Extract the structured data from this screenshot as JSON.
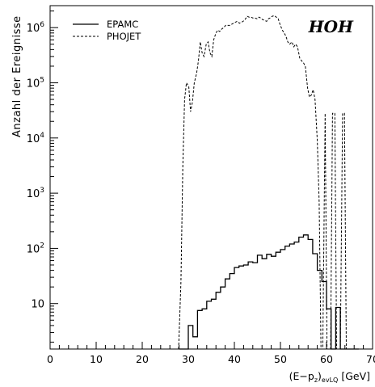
{
  "chart_data": {
    "type": "line",
    "title": "HOH",
    "ylabel": "Anzahl der Ereignisse",
    "xlabel": {
      "text": "(E−p",
      "sub_z": "z",
      "close": ")",
      "sub_evlq": "evLQ",
      "unit": " [GeV]"
    },
    "xlim": [
      0,
      70
    ],
    "ylim": [
      1.5,
      2500000
    ],
    "yscale": "log",
    "x_ticks": [
      {
        "value": 0,
        "label": "0"
      },
      {
        "value": 10,
        "label": "10"
      },
      {
        "value": 20,
        "label": "20"
      },
      {
        "value": 30,
        "label": "30"
      },
      {
        "value": 40,
        "label": "40"
      },
      {
        "value": 50,
        "label": "50"
      },
      {
        "value": 60,
        "label": "60"
      },
      {
        "value": 70,
        "label": "70"
      }
    ],
    "y_ticks": [
      {
        "value": 10,
        "base": "10",
        "exp": ""
      },
      {
        "value": 100,
        "base": "10",
        "exp": "2"
      },
      {
        "value": 1000,
        "base": "10",
        "exp": "3"
      },
      {
        "value": 10000,
        "base": "10",
        "exp": "4"
      },
      {
        "value": 100000,
        "base": "10",
        "exp": "5"
      },
      {
        "value": 1000000,
        "base": "10",
        "exp": "6"
      }
    ],
    "series": [
      {
        "name": "EPAMC",
        "style": "solid",
        "x": [
          28,
          29,
          30,
          31,
          32,
          33,
          34,
          35,
          36,
          37,
          38,
          39,
          40,
          41,
          42,
          43,
          44,
          45,
          46,
          47,
          48,
          49,
          50,
          51,
          52,
          53,
          54,
          55,
          56,
          57,
          58,
          59,
          60,
          61,
          62,
          63,
          64,
          65,
          66
        ],
        "y": [
          1.5,
          1.5,
          4,
          2.5,
          7.5,
          8,
          11,
          12,
          16,
          20,
          28,
          35,
          45,
          48,
          50,
          57,
          55,
          75,
          65,
          78,
          72,
          85,
          95,
          110,
          120,
          130,
          160,
          175,
          145,
          80,
          40,
          25,
          8,
          1.5,
          8.5,
          1.5,
          1.5,
          1.5,
          1.5
        ]
      },
      {
        "name": "PHOJET",
        "style": "dashed",
        "x": [
          27.9,
          28.4,
          28.8,
          29.2,
          29.6,
          30.1,
          30.5,
          30.9,
          31.3,
          31.8,
          32.2,
          32.6,
          33.0,
          33.4,
          33.9,
          34.3,
          34.7,
          35.1,
          35.5,
          36.0,
          36.4,
          36.8,
          37.3,
          37.7,
          38.1,
          38.5,
          39.0,
          39.4,
          39.8,
          40.2,
          40.6,
          41.1,
          41.5,
          41.9,
          42.3,
          42.8,
          43.2,
          43.6,
          44.0,
          44.4,
          44.9,
          45.3,
          45.7,
          46.1,
          46.6,
          47.0,
          47.4,
          47.8,
          48.2,
          48.7,
          49.1,
          49.5,
          49.9,
          50.4,
          50.8,
          51.2,
          51.6,
          52.0,
          52.5,
          52.9,
          53.3,
          53.7,
          54.2,
          54.6,
          55.0,
          55.4,
          55.9,
          56.3,
          56.7,
          57.1,
          57.5,
          58.0,
          58.4,
          58.8,
          59.2,
          59.7,
          60.1,
          60.5,
          60.9,
          61.3,
          61.8,
          62.2,
          62.6,
          63.0,
          63.5,
          63.9,
          64.3,
          64.7,
          65.1,
          65.6
        ],
        "y": [
          1.5,
          25,
          3000,
          50000,
          100000,
          85000,
          30000,
          45000,
          100000,
          150000,
          250000,
          550000,
          350000,
          300000,
          500000,
          550000,
          350000,
          300000,
          600000,
          800000,
          900000,
          850000,
          950000,
          1000000,
          1100000,
          1100000,
          1100000,
          1150000,
          1200000,
          1250000,
          1300000,
          1200000,
          1250000,
          1300000,
          1400000,
          1600000,
          1550000,
          1550000,
          1500000,
          1500000,
          1450000,
          1550000,
          1500000,
          1400000,
          1350000,
          1300000,
          1450000,
          1500000,
          1600000,
          1650000,
          1550000,
          1450000,
          1150000,
          900000,
          800000,
          700000,
          550000,
          500000,
          550000,
          450000,
          500000,
          450000,
          280000,
          250000,
          230000,
          200000,
          80000,
          55000,
          60000,
          75000,
          50000,
          9000,
          700,
          1.5,
          1.5,
          28000,
          1.5,
          1.5,
          1.5,
          28000,
          28000,
          1.5,
          1.5,
          1.5,
          28000,
          28000,
          1.5,
          1.5,
          1.5,
          1.5
        ]
      }
    ]
  }
}
